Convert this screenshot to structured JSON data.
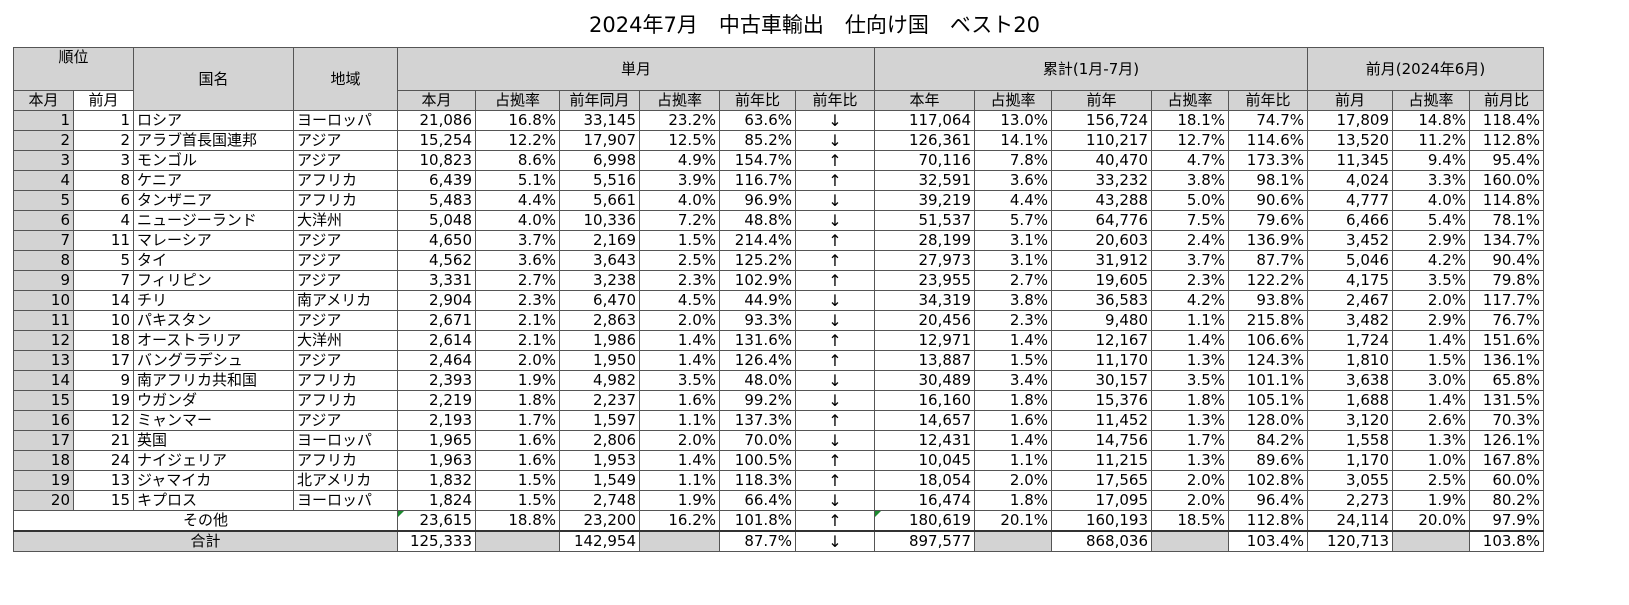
{
  "title": "2024年7月　中古車輸出　仕向け国　ベスト20",
  "headers": {
    "rank": "順位",
    "country": "国名",
    "region": "地域",
    "monthly": "単月",
    "cumulative": "累計(1月-7月)",
    "prev_month": "前月(2024年6月)",
    "this_month": "本月",
    "last_month": "前月",
    "sub_monthly": [
      "本月",
      "占拠率",
      "前年同月",
      "占拠率",
      "前年比",
      "前年比"
    ],
    "sub_cumulative": [
      "本年",
      "占拠率",
      "前年",
      "占拠率",
      "前年比"
    ],
    "sub_prev": [
      "前月",
      "占拠率",
      "前月比"
    ]
  },
  "rows": [
    {
      "rank": "1",
      "prev_rank": "1",
      "country": "ロシア",
      "region": "ヨーロッパ",
      "m": "21,086",
      "ms": "16.8%",
      "my": "33,145",
      "mys": "23.2%",
      "yoy": "63.6%",
      "arrow": "↓",
      "c": "117,064",
      "cs": "13.0%",
      "cy": "156,724",
      "cys": "18.1%",
      "cyoy": "74.7%",
      "p": "17,809",
      "ps": "14.8%",
      "pr": "118.4%"
    },
    {
      "rank": "2",
      "prev_rank": "2",
      "country": "アラブ首長国連邦",
      "region": "アジア",
      "m": "15,254",
      "ms": "12.2%",
      "my": "17,907",
      "mys": "12.5%",
      "yoy": "85.2%",
      "arrow": "↓",
      "c": "126,361",
      "cs": "14.1%",
      "cy": "110,217",
      "cys": "12.7%",
      "cyoy": "114.6%",
      "p": "13,520",
      "ps": "11.2%",
      "pr": "112.8%"
    },
    {
      "rank": "3",
      "prev_rank": "3",
      "country": "モンゴル",
      "region": "アジア",
      "m": "10,823",
      "ms": "8.6%",
      "my": "6,998",
      "mys": "4.9%",
      "yoy": "154.7%",
      "arrow": "↑",
      "c": "70,116",
      "cs": "7.8%",
      "cy": "40,470",
      "cys": "4.7%",
      "cyoy": "173.3%",
      "p": "11,345",
      "ps": "9.4%",
      "pr": "95.4%"
    },
    {
      "rank": "4",
      "prev_rank": "8",
      "country": "ケニア",
      "region": "アフリカ",
      "m": "6,439",
      "ms": "5.1%",
      "my": "5,516",
      "mys": "3.9%",
      "yoy": "116.7%",
      "arrow": "↑",
      "c": "32,591",
      "cs": "3.6%",
      "cy": "33,232",
      "cys": "3.8%",
      "cyoy": "98.1%",
      "p": "4,024",
      "ps": "3.3%",
      "pr": "160.0%"
    },
    {
      "rank": "5",
      "prev_rank": "6",
      "country": "タンザニア",
      "region": "アフリカ",
      "m": "5,483",
      "ms": "4.4%",
      "my": "5,661",
      "mys": "4.0%",
      "yoy": "96.9%",
      "arrow": "↓",
      "c": "39,219",
      "cs": "4.4%",
      "cy": "43,288",
      "cys": "5.0%",
      "cyoy": "90.6%",
      "p": "4,777",
      "ps": "4.0%",
      "pr": "114.8%"
    },
    {
      "rank": "6",
      "prev_rank": "4",
      "country": "ニュージーランド",
      "region": "大洋州",
      "m": "5,048",
      "ms": "4.0%",
      "my": "10,336",
      "mys": "7.2%",
      "yoy": "48.8%",
      "arrow": "↓",
      "c": "51,537",
      "cs": "5.7%",
      "cy": "64,776",
      "cys": "7.5%",
      "cyoy": "79.6%",
      "p": "6,466",
      "ps": "5.4%",
      "pr": "78.1%"
    },
    {
      "rank": "7",
      "prev_rank": "11",
      "country": "マレーシア",
      "region": "アジア",
      "m": "4,650",
      "ms": "3.7%",
      "my": "2,169",
      "mys": "1.5%",
      "yoy": "214.4%",
      "arrow": "↑",
      "c": "28,199",
      "cs": "3.1%",
      "cy": "20,603",
      "cys": "2.4%",
      "cyoy": "136.9%",
      "p": "3,452",
      "ps": "2.9%",
      "pr": "134.7%"
    },
    {
      "rank": "8",
      "prev_rank": "5",
      "country": "タイ",
      "region": "アジア",
      "m": "4,562",
      "ms": "3.6%",
      "my": "3,643",
      "mys": "2.5%",
      "yoy": "125.2%",
      "arrow": "↑",
      "c": "27,973",
      "cs": "3.1%",
      "cy": "31,912",
      "cys": "3.7%",
      "cyoy": "87.7%",
      "p": "5,046",
      "ps": "4.2%",
      "pr": "90.4%"
    },
    {
      "rank": "9",
      "prev_rank": "7",
      "country": "フィリピン",
      "region": "アジア",
      "m": "3,331",
      "ms": "2.7%",
      "my": "3,238",
      "mys": "2.3%",
      "yoy": "102.9%",
      "arrow": "↑",
      "c": "23,955",
      "cs": "2.7%",
      "cy": "19,605",
      "cys": "2.3%",
      "cyoy": "122.2%",
      "p": "4,175",
      "ps": "3.5%",
      "pr": "79.8%"
    },
    {
      "rank": "10",
      "prev_rank": "14",
      "country": "チリ",
      "region": "南アメリカ",
      "m": "2,904",
      "ms": "2.3%",
      "my": "6,470",
      "mys": "4.5%",
      "yoy": "44.9%",
      "arrow": "↓",
      "c": "34,319",
      "cs": "3.8%",
      "cy": "36,583",
      "cys": "4.2%",
      "cyoy": "93.8%",
      "p": "2,467",
      "ps": "2.0%",
      "pr": "117.7%"
    },
    {
      "rank": "11",
      "prev_rank": "10",
      "country": "パキスタン",
      "region": "アジア",
      "m": "2,671",
      "ms": "2.1%",
      "my": "2,863",
      "mys": "2.0%",
      "yoy": "93.3%",
      "arrow": "↓",
      "c": "20,456",
      "cs": "2.3%",
      "cy": "9,480",
      "cys": "1.1%",
      "cyoy": "215.8%",
      "p": "3,482",
      "ps": "2.9%",
      "pr": "76.7%"
    },
    {
      "rank": "12",
      "prev_rank": "18",
      "country": "オーストラリア",
      "region": "大洋州",
      "m": "2,614",
      "ms": "2.1%",
      "my": "1,986",
      "mys": "1.4%",
      "yoy": "131.6%",
      "arrow": "↑",
      "c": "12,971",
      "cs": "1.4%",
      "cy": "12,167",
      "cys": "1.4%",
      "cyoy": "106.6%",
      "p": "1,724",
      "ps": "1.4%",
      "pr": "151.6%"
    },
    {
      "rank": "13",
      "prev_rank": "17",
      "country": "バングラデシュ",
      "region": "アジア",
      "m": "2,464",
      "ms": "2.0%",
      "my": "1,950",
      "mys": "1.4%",
      "yoy": "126.4%",
      "arrow": "↑",
      "c": "13,887",
      "cs": "1.5%",
      "cy": "11,170",
      "cys": "1.3%",
      "cyoy": "124.3%",
      "p": "1,810",
      "ps": "1.5%",
      "pr": "136.1%"
    },
    {
      "rank": "14",
      "prev_rank": "9",
      "country": "南アフリカ共和国",
      "region": "アフリカ",
      "m": "2,393",
      "ms": "1.9%",
      "my": "4,982",
      "mys": "3.5%",
      "yoy": "48.0%",
      "arrow": "↓",
      "c": "30,489",
      "cs": "3.4%",
      "cy": "30,157",
      "cys": "3.5%",
      "cyoy": "101.1%",
      "p": "3,638",
      "ps": "3.0%",
      "pr": "65.8%"
    },
    {
      "rank": "15",
      "prev_rank": "19",
      "country": "ウガンダ",
      "region": "アフリカ",
      "m": "2,219",
      "ms": "1.8%",
      "my": "2,237",
      "mys": "1.6%",
      "yoy": "99.2%",
      "arrow": "↓",
      "c": "16,160",
      "cs": "1.8%",
      "cy": "15,376",
      "cys": "1.8%",
      "cyoy": "105.1%",
      "p": "1,688",
      "ps": "1.4%",
      "pr": "131.5%"
    },
    {
      "rank": "16",
      "prev_rank": "12",
      "country": "ミャンマー",
      "region": "アジア",
      "m": "2,193",
      "ms": "1.7%",
      "my": "1,597",
      "mys": "1.1%",
      "yoy": "137.3%",
      "arrow": "↑",
      "c": "14,657",
      "cs": "1.6%",
      "cy": "11,452",
      "cys": "1.3%",
      "cyoy": "128.0%",
      "p": "3,120",
      "ps": "2.6%",
      "pr": "70.3%"
    },
    {
      "rank": "17",
      "prev_rank": "21",
      "country": "英国",
      "region": "ヨーロッパ",
      "m": "1,965",
      "ms": "1.6%",
      "my": "2,806",
      "mys": "2.0%",
      "yoy": "70.0%",
      "arrow": "↓",
      "c": "12,431",
      "cs": "1.4%",
      "cy": "14,756",
      "cys": "1.7%",
      "cyoy": "84.2%",
      "p": "1,558",
      "ps": "1.3%",
      "pr": "126.1%"
    },
    {
      "rank": "18",
      "prev_rank": "24",
      "country": "ナイジェリア",
      "region": "アフリカ",
      "m": "1,963",
      "ms": "1.6%",
      "my": "1,953",
      "mys": "1.4%",
      "yoy": "100.5%",
      "arrow": "↑",
      "c": "10,045",
      "cs": "1.1%",
      "cy": "11,215",
      "cys": "1.3%",
      "cyoy": "89.6%",
      "p": "1,170",
      "ps": "1.0%",
      "pr": "167.8%"
    },
    {
      "rank": "19",
      "prev_rank": "13",
      "country": "ジャマイカ",
      "region": "北アメリカ",
      "m": "1,832",
      "ms": "1.5%",
      "my": "1,549",
      "mys": "1.1%",
      "yoy": "118.3%",
      "arrow": "↑",
      "c": "18,054",
      "cs": "2.0%",
      "cy": "17,565",
      "cys": "2.0%",
      "cyoy": "102.8%",
      "p": "3,055",
      "ps": "2.5%",
      "pr": "60.0%"
    },
    {
      "rank": "20",
      "prev_rank": "15",
      "country": "キプロス",
      "region": "ヨーロッパ",
      "m": "1,824",
      "ms": "1.5%",
      "my": "2,748",
      "mys": "1.9%",
      "yoy": "66.4%",
      "arrow": "↓",
      "c": "16,474",
      "cs": "1.8%",
      "cy": "17,095",
      "cys": "2.0%",
      "cyoy": "96.4%",
      "p": "2,273",
      "ps": "1.9%",
      "pr": "80.2%"
    }
  ],
  "others": {
    "label": "その他",
    "m": "23,615",
    "ms": "18.8%",
    "my": "23,200",
    "mys": "16.2%",
    "yoy": "101.8%",
    "arrow": "↑",
    "c": "180,619",
    "cs": "20.1%",
    "cy": "160,193",
    "cys": "18.5%",
    "cyoy": "112.8%",
    "p": "24,114",
    "ps": "20.0%",
    "pr": "97.9%"
  },
  "total": {
    "label": "合計",
    "m": "125,333",
    "my": "142,954",
    "yoy": "87.7%",
    "arrow": "↓",
    "c": "897,577",
    "cy": "868,036",
    "cyoy": "103.4%",
    "p": "120,713",
    "pr": "103.8%"
  }
}
